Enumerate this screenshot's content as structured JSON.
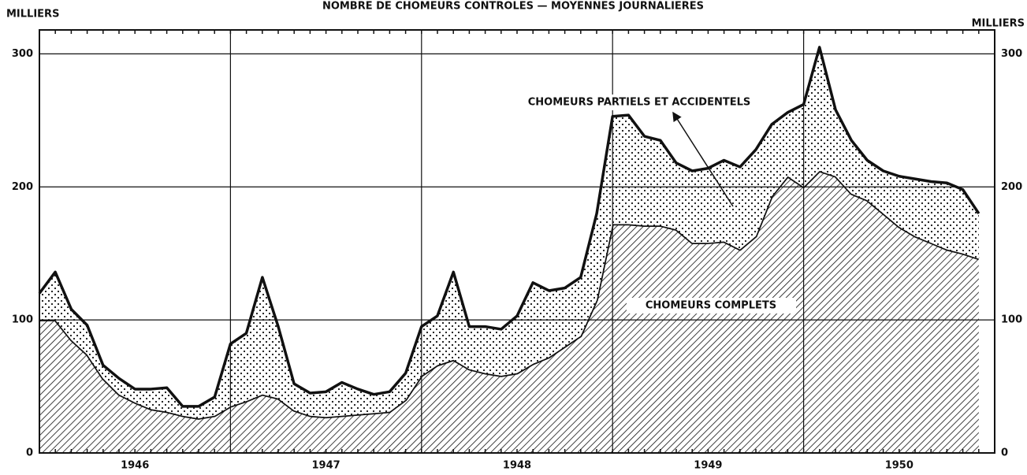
{
  "chart_data": {
    "type": "stacked_area",
    "title": "NOMBRE DE CHOMEURS CONTROLES — MOYENNES JOURNALIERES",
    "ylabel": "MILLIERS",
    "y2label": "MILLIERS",
    "x": [
      1946,
      1946.083,
      1946.167,
      1946.25,
      1946.333,
      1946.417,
      1946.5,
      1946.583,
      1946.667,
      1946.75,
      1946.833,
      1946.917,
      1947,
      1947.083,
      1947.167,
      1947.25,
      1947.333,
      1947.417,
      1947.5,
      1947.583,
      1947.667,
      1947.75,
      1947.833,
      1947.917,
      1948,
      1948.083,
      1948.167,
      1948.25,
      1948.333,
      1948.417,
      1948.5,
      1948.583,
      1948.667,
      1948.75,
      1948.833,
      1948.917,
      1949,
      1949.083,
      1949.167,
      1949.25,
      1949.333,
      1949.417,
      1949.5,
      1949.583,
      1949.667,
      1949.75,
      1949.833,
      1949.917,
      1950,
      1950.083,
      1950.167,
      1950.25,
      1950.333,
      1950.417,
      1950.5,
      1950.583,
      1950.667,
      1950.75,
      1950.833,
      1950.917
    ],
    "series": [
      {
        "name": "CHOMEURS COMPLETS",
        "color": "#111111",
        "fill": "hatch",
        "values": [
          100,
          100,
          85,
          74,
          56,
          44,
          38,
          33,
          31,
          28,
          26,
          28,
          35,
          39,
          44,
          41,
          32,
          28,
          27,
          28,
          29,
          30,
          31,
          40,
          58,
          66,
          70,
          63,
          60,
          58,
          60,
          67,
          72,
          80,
          88,
          115,
          172,
          172,
          171,
          171,
          168,
          158,
          158,
          159,
          153,
          163,
          193,
          208,
          200,
          212,
          208,
          195,
          190,
          180,
          170,
          163,
          158,
          153,
          150,
          146
        ]
      },
      {
        "name": "CHOMEURS PARTIELS ET ACCIDENTELS",
        "color": "#111111",
        "fill": "dots",
        "values": [
          20,
          36,
          23,
          22,
          10,
          12,
          10,
          15,
          18,
          7,
          9,
          14,
          47,
          51,
          88,
          54,
          20,
          17,
          19,
          25,
          19,
          14,
          15,
          20,
          37,
          37,
          66,
          32,
          35,
          35,
          43,
          61,
          50,
          44,
          44,
          65,
          81,
          82,
          67,
          64,
          50,
          54,
          56,
          61,
          62,
          65,
          54,
          48,
          62,
          93,
          50,
          40,
          30,
          32,
          38,
          43,
          46,
          50,
          48,
          34
        ]
      }
    ],
    "xlim": [
      1946,
      1951
    ],
    "xticks": [
      {
        "value": 1946.5,
        "label": "1946"
      },
      {
        "value": 1947.5,
        "label": "1947"
      },
      {
        "value": 1948.5,
        "label": "1948"
      },
      {
        "value": 1949.5,
        "label": "1949"
      },
      {
        "value": 1950.5,
        "label": "1950"
      }
    ],
    "xgrid": [
      1947,
      1948,
      1949,
      1950
    ],
    "ylim": [
      0,
      318
    ],
    "yticks": [
      0,
      100,
      200,
      300
    ],
    "y2lim": [
      0,
      318
    ],
    "y2ticks": [
      0,
      100,
      200,
      300
    ],
    "grid": true
  }
}
